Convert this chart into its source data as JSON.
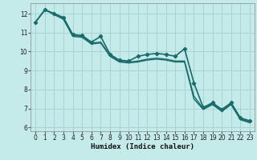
{
  "xlabel": "Humidex (Indice chaleur)",
  "bg_color": "#c5eaea",
  "grid_color": "#a8d4d4",
  "line_color": "#1a6b6b",
  "xlim": [
    -0.5,
    23.5
  ],
  "ylim": [
    5.8,
    12.55
  ],
  "yticks": [
    6,
    7,
    8,
    9,
    10,
    11,
    12
  ],
  "xticks": [
    0,
    1,
    2,
    3,
    4,
    5,
    6,
    7,
    8,
    9,
    10,
    11,
    12,
    13,
    14,
    15,
    16,
    17,
    18,
    19,
    20,
    21,
    22,
    23
  ],
  "series": [
    {
      "x": [
        0,
        1,
        2,
        3,
        4,
        5,
        6,
        7,
        8,
        9,
        10,
        11,
        12,
        13,
        14,
        15,
        16,
        17,
        18,
        19,
        20,
        21,
        22,
        23
      ],
      "y": [
        11.55,
        12.2,
        12.0,
        11.8,
        10.9,
        10.85,
        10.5,
        10.8,
        9.85,
        9.55,
        9.5,
        9.75,
        9.85,
        9.9,
        9.85,
        9.75,
        10.15,
        8.35,
        7.05,
        7.3,
        6.95,
        7.3,
        6.5,
        6.35
      ],
      "marker": true,
      "lw": 1.2
    },
    {
      "x": [
        0,
        1,
        2,
        3,
        4,
        5,
        6,
        7,
        8,
        9,
        10,
        11,
        12,
        13,
        14,
        15,
        16,
        17,
        18,
        19,
        20,
        21,
        22,
        23
      ],
      "y": [
        11.55,
        12.2,
        12.0,
        11.75,
        10.85,
        10.8,
        10.45,
        10.5,
        9.8,
        9.5,
        9.45,
        9.5,
        9.6,
        9.65,
        9.6,
        9.5,
        9.5,
        7.65,
        7.0,
        7.25,
        6.9,
        7.25,
        6.45,
        6.3
      ],
      "marker": false,
      "lw": 1.0
    },
    {
      "x": [
        0,
        1,
        2,
        3,
        4,
        5,
        6,
        7,
        8,
        9,
        10,
        11,
        12,
        13,
        14,
        15,
        16,
        17,
        18,
        19,
        20,
        21,
        22,
        23
      ],
      "y": [
        11.55,
        12.2,
        11.95,
        11.7,
        10.8,
        10.75,
        10.4,
        10.45,
        9.75,
        9.45,
        9.4,
        9.45,
        9.55,
        9.6,
        9.55,
        9.45,
        9.45,
        7.5,
        6.95,
        7.2,
        6.85,
        7.2,
        6.4,
        6.25
      ],
      "marker": false,
      "lw": 1.0
    }
  ]
}
